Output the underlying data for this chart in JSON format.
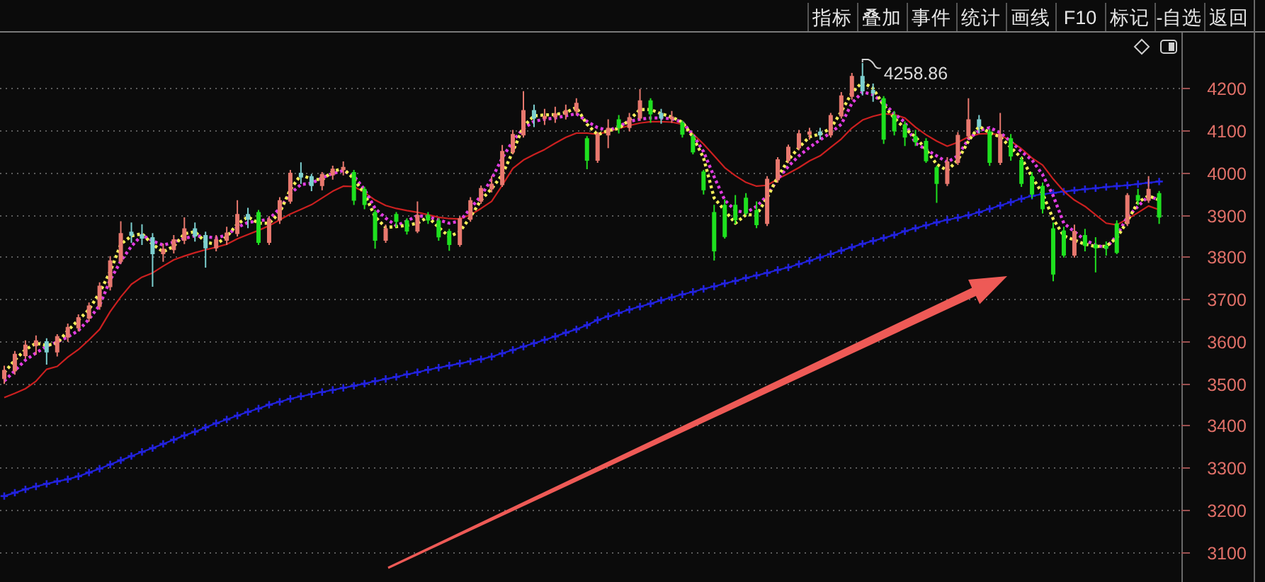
{
  "chart_data": {
    "type": "candlestick",
    "categories": [
      null,
      null,
      null,
      null,
      null,
      null,
      null,
      null,
      null,
      null,
      null,
      null,
      null,
      null,
      null,
      null,
      null,
      null,
      null,
      null,
      null,
      null,
      null,
      null,
      null,
      null,
      null,
      null,
      null,
      null,
      null,
      null,
      null,
      null,
      null,
      null,
      null,
      null,
      null,
      null,
      null,
      null,
      null,
      null,
      null,
      null,
      null,
      null,
      null,
      null,
      null,
      null,
      null,
      null,
      null,
      null,
      null,
      null,
      null,
      null,
      null,
      null,
      null,
      null,
      null,
      null,
      null,
      null,
      null,
      null,
      null,
      null,
      null,
      null,
      null,
      null,
      null,
      null,
      null,
      null,
      null,
      null,
      null,
      null,
      null,
      null,
      null,
      null,
      null,
      null,
      null,
      null,
      null,
      null,
      null,
      null,
      null,
      null,
      null,
      null,
      null,
      null,
      null,
      null,
      null,
      null,
      null,
      null,
      null,
      null
    ],
    "ohlc": [
      [
        3512,
        3540,
        3500,
        3530
      ],
      [
        3530,
        3575,
        3522,
        3568
      ],
      [
        3566,
        3600,
        3560,
        3590
      ],
      [
        3590,
        3612,
        3570,
        3600
      ],
      [
        3598,
        3605,
        3546,
        3575
      ],
      [
        3575,
        3615,
        3565,
        3610
      ],
      [
        3610,
        3640,
        3600,
        3632
      ],
      [
        3632,
        3662,
        3625,
        3655
      ],
      [
        3655,
        3690,
        3648,
        3683
      ],
      [
        3683,
        3738,
        3676,
        3730
      ],
      [
        3730,
        3800,
        3722,
        3790
      ],
      [
        3790,
        3883,
        3785,
        3855
      ],
      [
        3858,
        3880,
        3835,
        3852
      ],
      [
        3852,
        3876,
        3830,
        3845
      ],
      [
        3845,
        3855,
        3731,
        3808
      ],
      [
        3808,
        3830,
        3790,
        3818
      ],
      [
        3818,
        3850,
        3810,
        3840
      ],
      [
        3840,
        3892,
        3832,
        3866
      ],
      [
        3866,
        3880,
        3838,
        3850
      ],
      [
        3850,
        3858,
        3776,
        3822
      ],
      [
        3822,
        3850,
        3815,
        3840
      ],
      [
        3840,
        3870,
        3830,
        3856
      ],
      [
        3856,
        3933,
        3850,
        3900
      ],
      [
        3900,
        3915,
        3870,
        3890
      ],
      [
        3905,
        3910,
        3830,
        3835
      ],
      [
        3835,
        3895,
        3830,
        3888
      ],
      [
        3888,
        3940,
        3880,
        3933
      ],
      [
        3933,
        4005,
        3928,
        3998
      ],
      [
        3998,
        4023,
        3975,
        3990
      ],
      [
        3990,
        3995,
        3958,
        3970
      ],
      [
        3970,
        4000,
        3960,
        3995
      ],
      [
        3995,
        4015,
        3985,
        4008
      ],
      [
        4008,
        4025,
        3995,
        4012
      ],
      [
        4000,
        4005,
        3925,
        3935
      ],
      [
        3960,
        3965,
        3915,
        3925
      ],
      [
        3905,
        3910,
        3821,
        3840
      ],
      [
        3840,
        3875,
        3835,
        3866
      ],
      [
        3900,
        3905,
        3872,
        3885
      ],
      [
        3885,
        3890,
        3855,
        3862
      ],
      [
        3862,
        3930,
        3858,
        3898
      ],
      [
        3898,
        3905,
        3880,
        3888
      ],
      [
        3885,
        3890,
        3840,
        3848
      ],
      [
        3860,
        3865,
        3816,
        3830
      ],
      [
        3830,
        3895,
        3826,
        3890
      ],
      [
        3890,
        3940,
        3885,
        3933
      ],
      [
        3933,
        3968,
        3928,
        3962
      ],
      [
        3962,
        3990,
        3955,
        3972
      ],
      [
        3972,
        4064,
        3968,
        4050
      ],
      [
        4050,
        4100,
        4045,
        4090
      ],
      [
        4090,
        4192,
        4085,
        4147
      ],
      [
        4147,
        4160,
        4110,
        4130
      ],
      [
        4130,
        4150,
        4115,
        4133
      ],
      [
        4133,
        4155,
        4120,
        4139
      ],
      [
        4139,
        4160,
        4128,
        4147
      ],
      [
        4147,
        4175,
        4140,
        4164
      ],
      [
        4080,
        4085,
        4010,
        4030
      ],
      [
        4030,
        4095,
        4025,
        4090
      ],
      [
        4090,
        4125,
        4060,
        4105
      ],
      [
        4125,
        4135,
        4095,
        4108
      ],
      [
        4108,
        4140,
        4100,
        4130
      ],
      [
        4130,
        4197,
        4125,
        4170
      ],
      [
        4170,
        4175,
        4120,
        4140
      ],
      [
        4140,
        4150,
        4118,
        4130
      ],
      [
        4130,
        4145,
        4120,
        4132
      ],
      [
        4118,
        4122,
        4085,
        4092
      ],
      [
        4085,
        4090,
        4045,
        4050
      ],
      [
        4001,
        4005,
        3950,
        3960
      ],
      [
        3905,
        3922,
        3793,
        3815
      ],
      [
        3922,
        3935,
        3845,
        3849
      ],
      [
        3922,
        3945,
        3880,
        3889
      ],
      [
        3939,
        3950,
        3900,
        3905
      ],
      [
        3910,
        3930,
        3870,
        3877
      ],
      [
        3880,
        3990,
        3875,
        3984
      ],
      [
        3984,
        4035,
        3978,
        4030
      ],
      [
        4030,
        4065,
        4025,
        4060
      ],
      [
        4060,
        4100,
        4055,
        4092
      ],
      [
        4092,
        4105,
        4080,
        4096
      ],
      [
        4096,
        4105,
        4080,
        4090
      ],
      [
        4090,
        4140,
        4085,
        4135
      ],
      [
        4135,
        4190,
        4130,
        4182
      ],
      [
        4182,
        4235,
        4175,
        4228
      ],
      [
        4228,
        4258.86,
        4185,
        4195
      ],
      [
        4195,
        4210,
        4170,
        4190
      ],
      [
        4175,
        4180,
        4070,
        4080
      ],
      [
        4135,
        4145,
        4090,
        4100
      ],
      [
        4113,
        4120,
        4065,
        4085
      ],
      [
        4085,
        4100,
        4065,
        4074
      ],
      [
        4074,
        4080,
        4025,
        4029
      ],
      [
        4011,
        4015,
        3930,
        3975
      ],
      [
        3975,
        4035,
        3970,
        4025
      ],
      [
        4025,
        4095,
        4020,
        4088
      ],
      [
        4088,
        4175,
        4080,
        4125
      ],
      [
        4125,
        4135,
        4095,
        4110
      ],
      [
        4096,
        4102,
        4018,
        4025
      ],
      [
        4025,
        4140,
        4020,
        4090
      ],
      [
        4080,
        4090,
        4030,
        4040
      ],
      [
        4029,
        4035,
        3968,
        3975
      ],
      [
        3990,
        4000,
        3940,
        3950
      ],
      [
        3967,
        3975,
        3905,
        3915
      ],
      [
        3866,
        3880,
        3744,
        3760
      ],
      [
        3861,
        3870,
        3800,
        3805
      ],
      [
        3805,
        3875,
        3800,
        3860
      ],
      [
        3850,
        3865,
        3815,
        3828
      ],
      [
        3828,
        3845,
        3765,
        3822
      ],
      [
        3825,
        3835,
        3805,
        3821
      ],
      [
        3878,
        3885,
        3808,
        3811
      ],
      [
        3880,
        3950,
        3875,
        3945
      ],
      [
        3945,
        3960,
        3925,
        3935
      ],
      [
        3935,
        3990,
        3930,
        3960
      ],
      [
        3950,
        3955,
        3880,
        3895
      ]
    ],
    "colors": [
      "#e8786e",
      "#e8786e",
      "#e8786e",
      "#e8786e",
      "#7ccfcf",
      "#e8786e",
      "#e8786e",
      "#e8786e",
      "#e8786e",
      "#e8786e",
      "#e8786e",
      "#e8786e",
      "#7ccfcf",
      "#7ccfcf",
      "#7ccfcf",
      "#e8786e",
      "#e8786e",
      "#e8786e",
      "#7ccfcf",
      "#7ccfcf",
      "#e8786e",
      "#e8786e",
      "#e8786e",
      "#7ccfcf",
      "#1fe01f",
      "#e8786e",
      "#e8786e",
      "#e8786e",
      "#7ccfcf",
      "#7ccfcf",
      "#e8786e",
      "#e8786e",
      "#e8786e",
      "#1fe01f",
      "#1fe01f",
      "#1fe01f",
      "#e8786e",
      "#1fe01f",
      "#1fe01f",
      "#e8786e",
      "#1fe01f",
      "#1fe01f",
      "#1fe01f",
      "#e8786e",
      "#e8786e",
      "#e8786e",
      "#e8786e",
      "#e8786e",
      "#e8786e",
      "#e8786e",
      "#7ccfcf",
      "#e8786e",
      "#e8786e",
      "#e8786e",
      "#e8786e",
      "#1fe01f",
      "#e8786e",
      "#e8786e",
      "#1fe01f",
      "#e8786e",
      "#e8786e",
      "#1fe01f",
      "#7ccfcf",
      "#e8786e",
      "#1fe01f",
      "#1fe01f",
      "#1fe01f",
      "#1fe01f",
      "#1fe01f",
      "#1fe01f",
      "#1fe01f",
      "#1fe01f",
      "#e8786e",
      "#e8786e",
      "#e8786e",
      "#e8786e",
      "#e8786e",
      "#7ccfcf",
      "#e8786e",
      "#e8786e",
      "#e8786e",
      "#7ccfcf",
      "#7ccfcf",
      "#1fe01f",
      "#1fe01f",
      "#1fe01f",
      "#1fe01f",
      "#1fe01f",
      "#1fe01f",
      "#e8786e",
      "#e8786e",
      "#e8786e",
      "#7ccfcf",
      "#1fe01f",
      "#e8786e",
      "#1fe01f",
      "#1fe01f",
      "#1fe01f",
      "#1fe01f",
      "#1fe01f",
      "#1fe01f",
      "#e8786e",
      "#1fe01f",
      "#1fe01f",
      "#1fe01f",
      "#1fe01f",
      "#e8786e",
      "#1fe01f",
      "#e8786e",
      "#1fe01f"
    ],
    "value_labels": [
      null,
      null,
      null,
      null,
      null,
      null,
      null,
      null,
      null,
      null,
      null,
      null,
      null,
      null,
      null,
      null,
      null,
      null,
      null,
      null,
      null,
      null,
      null,
      null,
      null,
      null,
      null,
      null,
      null,
      null,
      null,
      null,
      null,
      null,
      null,
      null,
      null,
      null,
      null,
      null,
      null,
      null,
      null,
      null,
      null,
      null,
      null,
      null,
      null,
      null,
      null,
      null,
      null,
      null,
      null,
      null,
      null,
      null,
      null,
      null,
      null,
      null,
      null,
      null,
      null,
      null,
      null,
      null,
      null,
      null,
      null,
      null,
      null,
      null,
      null,
      null,
      null,
      null,
      null,
      null,
      null,
      "4258.86",
      null,
      null,
      null,
      null,
      null,
      null,
      null,
      null,
      null,
      null,
      null,
      null,
      null,
      null,
      null,
      null,
      null,
      null,
      null,
      null,
      null,
      null,
      null,
      null,
      null,
      null,
      null,
      null
    ],
    "series": [
      {
        "type": "line",
        "marker": "cross",
        "color": "#2222dd",
        "values": [
          3232,
          3240,
          3248,
          3255,
          3261,
          3267,
          3272,
          3279,
          3288,
          3297,
          3307,
          3317,
          3327,
          3337,
          3346,
          3356,
          3366,
          3376,
          3385,
          3395,
          3405,
          3414,
          3423,
          3432,
          3440,
          3449,
          3456,
          3463,
          3469,
          3474,
          3479,
          3484,
          3489,
          3494,
          3499,
          3505,
          3510,
          3515,
          3521,
          3526,
          3532,
          3537,
          3542,
          3547,
          3552,
          3557,
          3563,
          3571,
          3579,
          3587,
          3595,
          3603,
          3611,
          3620,
          3628,
          3638,
          3650,
          3659,
          3667,
          3675,
          3682,
          3689,
          3697,
          3704,
          3711,
          3717,
          3724,
          3730,
          3737,
          3743,
          3750,
          3756,
          3762,
          3769,
          3775,
          3783,
          3791,
          3799,
          3807,
          3815,
          3823,
          3831,
          3838,
          3845,
          3852,
          3861,
          3868,
          3875,
          3882,
          3888,
          3893,
          3899,
          3906,
          3914,
          3922,
          3930,
          3938,
          3945,
          3949,
          3952,
          3955,
          3958,
          3961,
          3963,
          3966,
          3968,
          3970,
          3973,
          3976,
          3979
        ]
      },
      {
        "type": "line",
        "color": "#cc2020",
        "values": [
          3466,
          3476,
          3487,
          3505,
          3533,
          3540,
          3562,
          3580,
          3603,
          3628,
          3670,
          3705,
          3735,
          3752,
          3762,
          3778,
          3793,
          3802,
          3810,
          3817,
          3823,
          3830,
          3843,
          3853,
          3863,
          3874,
          3888,
          3902,
          3913,
          3924,
          3940,
          3956,
          3968,
          3967,
          3953,
          3935,
          3922,
          3915,
          3910,
          3906,
          3900,
          3894,
          3891,
          3890,
          3900,
          3915,
          3932,
          3970,
          4010,
          4030,
          4043,
          4055,
          4070,
          4084,
          4094,
          4094,
          4091,
          4098,
          4105,
          4112,
          4118,
          4121,
          4121,
          4120,
          4115,
          4092,
          4068,
          4040,
          4012,
          3993,
          3977,
          3968,
          3970,
          3985,
          3998,
          4012,
          4028,
          4040,
          4060,
          4080,
          4106,
          4125,
          4134,
          4140,
          4138,
          4130,
          4108,
          4090,
          4075,
          4063,
          4072,
          4085,
          4092,
          4093,
          4090,
          4075,
          4057,
          4035,
          4018,
          3985,
          3956,
          3935,
          3920,
          3900,
          3880,
          3876,
          3890,
          3905,
          3921,
          3912
        ]
      },
      {
        "type": "line",
        "line_style": "dotted",
        "color": "#e03ce0",
        "values": [
          3505,
          3530,
          3555,
          3572,
          3588,
          3598,
          3610,
          3625,
          3652,
          3685,
          3745,
          3790,
          3825,
          3852,
          3838,
          3828,
          3835,
          3844,
          3850,
          3848,
          3845,
          3852,
          3870,
          3882,
          3885,
          3890,
          3915,
          3950,
          3972,
          3975,
          3988,
          3998,
          4005,
          3992,
          3960,
          3915,
          3892,
          3874,
          3885,
          3898,
          3895,
          3888,
          3880,
          3885,
          3915,
          3945,
          3985,
          4035,
          4075,
          4105,
          4122,
          4127,
          4130,
          4135,
          4140,
          4122,
          4107,
          4100,
          4110,
          4122,
          4127,
          4130,
          4130,
          4128,
          4120,
          4090,
          4050,
          3990,
          3935,
          3910,
          3905,
          3920,
          3945,
          3985,
          4015,
          4040,
          4060,
          4078,
          4095,
          4115,
          4165,
          4192,
          4185,
          4165,
          4140,
          4120,
          4070,
          4055,
          4040,
          4025,
          4040,
          4080,
          4100,
          4107,
          4095,
          4074,
          4050,
          4030,
          3995,
          3945,
          3880,
          3860,
          3840,
          3828,
          3822,
          3850,
          3895,
          3920,
          3945,
          3935
        ]
      },
      {
        "type": "line",
        "line_style": "dotted",
        "color": "#f4ef5a",
        "values": [
          3525,
          3555,
          3580,
          3595,
          3590,
          3595,
          3625,
          3650,
          3675,
          3715,
          3765,
          3830,
          3850,
          3855,
          3830,
          3812,
          3825,
          3855,
          3860,
          3835,
          3830,
          3848,
          3878,
          3895,
          3880,
          3880,
          3905,
          3960,
          3995,
          3985,
          3983,
          4003,
          4010,
          3985,
          3950,
          3895,
          3870,
          3872,
          3875,
          3880,
          3895,
          3870,
          3848,
          3860,
          3895,
          3935,
          3962,
          3995,
          4050,
          4110,
          4135,
          4137,
          4138,
          4143,
          4155,
          4115,
          4090,
          4100,
          4105,
          4125,
          4150,
          4150,
          4140,
          4132,
          4120,
          4085,
          4035,
          3940,
          3910,
          3880,
          3900,
          3900,
          3940,
          3990,
          4030,
          4060,
          4085,
          4092,
          4105,
          4145,
          4190,
          4215,
          4200,
          4160,
          4130,
          4105,
          4085,
          4055,
          4020,
          4005,
          4030,
          4075,
          4110,
          4095,
          4085,
          4060,
          4035,
          3990,
          3950,
          3890,
          3850,
          3840,
          3830,
          3825,
          3825,
          3845,
          3885,
          3930,
          3945,
          3935
        ]
      }
    ],
    "ylim": [
      3028,
      4326
    ],
    "yticks": [
      3100,
      3200,
      3300,
      3400,
      3500,
      3600,
      3700,
      3800,
      3900,
      4000,
      4100,
      4200
    ],
    "grid": "y",
    "tick_labels": "y",
    "annotations": [
      "指标",
      "叠加",
      "事件",
      "统计",
      "画线",
      "F10",
      "标记",
      "-自选",
      "返回"
    ]
  }
}
